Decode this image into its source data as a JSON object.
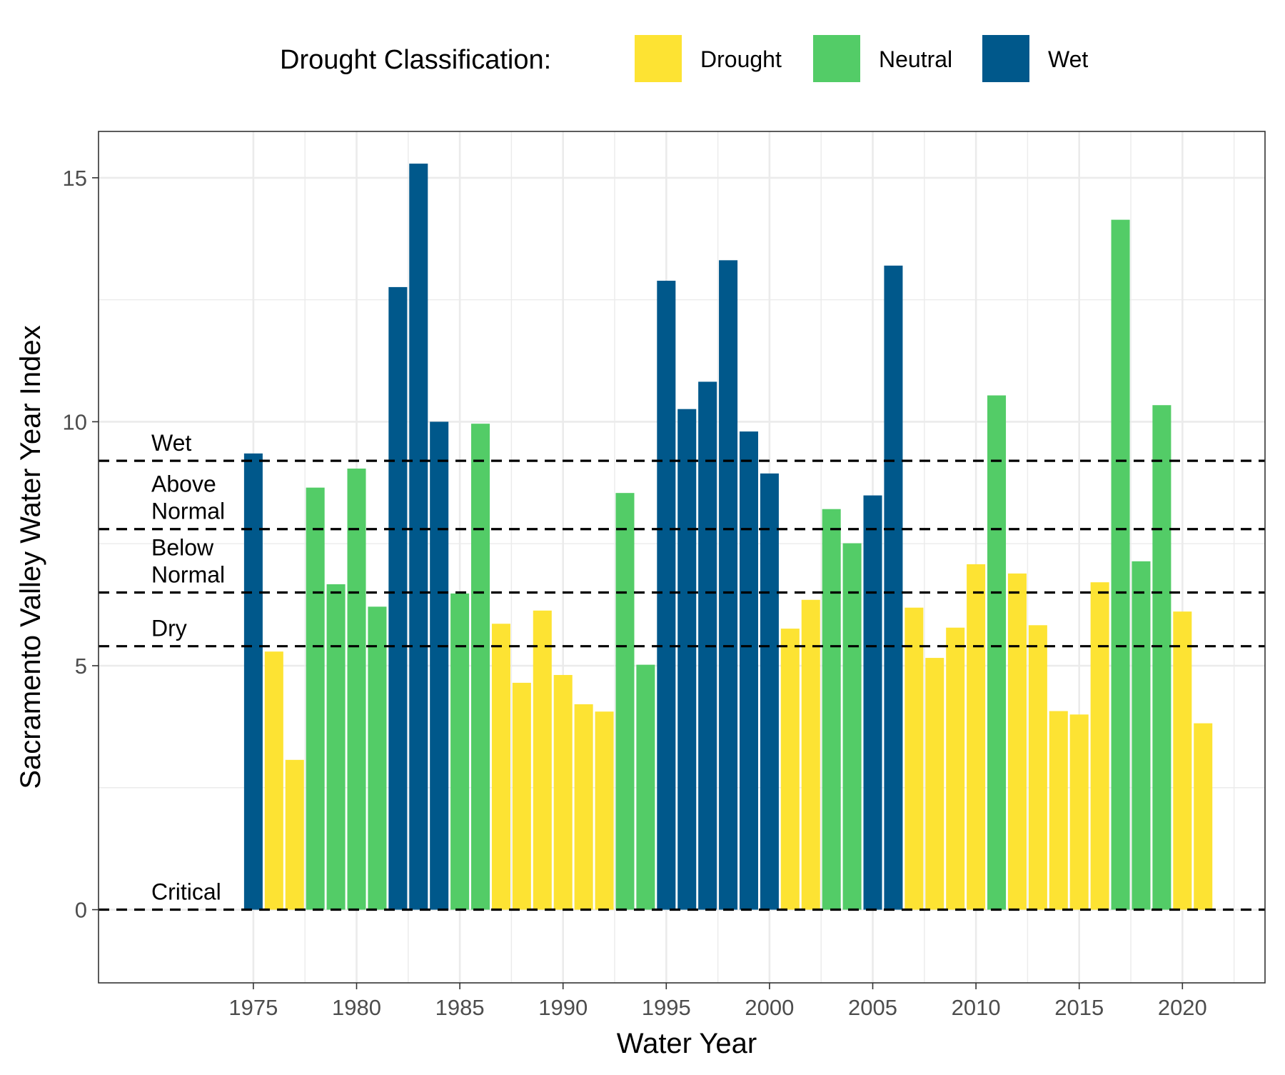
{
  "chart_data": {
    "type": "bar",
    "xlabel": "Water Year",
    "ylabel": "Sacramento Valley Water Year Index",
    "xlim": [
      1967.5,
      2024
    ],
    "ylim": [
      -1.5,
      15.95
    ],
    "x_ticks": [
      1975,
      1980,
      1985,
      1990,
      1995,
      2000,
      2005,
      2010,
      2015,
      2020
    ],
    "y_ticks": [
      0,
      5,
      10,
      15
    ],
    "y_minor_ticks": [
      2.5,
      7.5,
      12.5
    ],
    "grid": true,
    "legend": {
      "title": "Drought Classification:",
      "position": "top",
      "entries": [
        {
          "label": "Drought",
          "color": "#FDE333"
        },
        {
          "label": "Neutral",
          "color": "#53CC67"
        },
        {
          "label": "Wet",
          "color": "#00588B"
        }
      ]
    },
    "thresholds": [
      {
        "label": "Wet",
        "value": 9.2
      },
      {
        "label": "Above\nNormal",
        "value": 7.8
      },
      {
        "label": "Below\nNormal",
        "value": 6.5
      },
      {
        "label": "Dry",
        "value": 5.4
      },
      {
        "label": "Critical",
        "value": 0
      }
    ],
    "x": [
      1975,
      1976,
      1977,
      1978,
      1979,
      1980,
      1981,
      1982,
      1983,
      1984,
      1985,
      1986,
      1987,
      1988,
      1989,
      1990,
      1991,
      1992,
      1993,
      1994,
      1995,
      1996,
      1997,
      1998,
      1999,
      2000,
      2001,
      2002,
      2003,
      2004,
      2005,
      2006,
      2007,
      2008,
      2009,
      2010,
      2011,
      2012,
      2013,
      2014,
      2015,
      2016,
      2017,
      2018,
      2019,
      2020,
      2021
    ],
    "values": [
      9.35,
      5.29,
      3.07,
      8.65,
      6.67,
      9.04,
      6.21,
      12.76,
      15.29,
      10.0,
      6.48,
      9.96,
      5.86,
      4.65,
      6.13,
      4.81,
      4.21,
      4.06,
      8.54,
      5.02,
      12.89,
      10.26,
      10.82,
      13.31,
      9.8,
      8.94,
      5.76,
      6.35,
      8.21,
      7.51,
      8.49,
      13.2,
      6.19,
      5.16,
      5.78,
      7.08,
      10.54,
      6.89,
      5.83,
      4.07,
      4.0,
      6.71,
      14.14,
      7.14,
      10.34,
      6.11,
      3.82
    ],
    "classes": [
      "Wet",
      "Drought",
      "Drought",
      "Neutral",
      "Neutral",
      "Neutral",
      "Neutral",
      "Wet",
      "Wet",
      "Wet",
      "Neutral",
      "Neutral",
      "Drought",
      "Drought",
      "Drought",
      "Drought",
      "Drought",
      "Drought",
      "Neutral",
      "Neutral",
      "Wet",
      "Wet",
      "Wet",
      "Wet",
      "Wet",
      "Wet",
      "Drought",
      "Drought",
      "Neutral",
      "Neutral",
      "Wet",
      "Wet",
      "Drought",
      "Drought",
      "Drought",
      "Drought",
      "Neutral",
      "Drought",
      "Drought",
      "Drought",
      "Drought",
      "Drought",
      "Neutral",
      "Neutral",
      "Neutral",
      "Drought",
      "Drought"
    ]
  }
}
